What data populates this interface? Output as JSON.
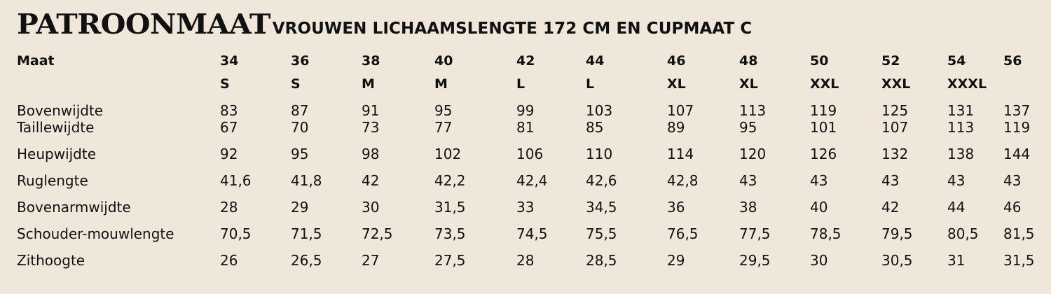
{
  "title": {
    "main": "PATROONMAAT",
    "subtitle": "VROUWEN LICHAAMSLENGTE 172 CM EN CUPMAAT C"
  },
  "table": {
    "header_label": "Maat",
    "sizes": [
      "34",
      "36",
      "38",
      "40",
      "42",
      "44",
      "46",
      "48",
      "50",
      "52",
      "54",
      "56"
    ],
    "letter_sizes": [
      "S",
      "S",
      "M",
      "M",
      "L",
      "L",
      "XL",
      "XL",
      "XXL",
      "XXL",
      "XXXL",
      ""
    ],
    "rows": [
      {
        "label": "Bovenwijdte",
        "values": [
          "83",
          "87",
          "91",
          "95",
          "99",
          "103",
          "107",
          "113",
          "119",
          "125",
          "131",
          "137"
        ]
      },
      {
        "label": "Taillewijdte",
        "values": [
          "67",
          "70",
          "73",
          "77",
          "81",
          "85",
          "89",
          "95",
          "101",
          "107",
          "113",
          "119"
        ]
      },
      {
        "label": "Heupwijdte",
        "values": [
          "92",
          "95",
          "98",
          "102",
          "106",
          "110",
          "114",
          "120",
          "126",
          "132",
          "138",
          "144"
        ]
      },
      {
        "label": "Ruglengte",
        "values": [
          "41,6",
          "41,8",
          "42",
          "42,2",
          "42,4",
          "42,6",
          "42,8",
          "43",
          "43",
          "43",
          "43",
          "43"
        ]
      },
      {
        "label": "Bovenarmwijdte",
        "values": [
          "28",
          "29",
          "30",
          "31,5",
          "33",
          "34,5",
          "36",
          "38",
          "40",
          "42",
          "44",
          "46"
        ]
      },
      {
        "label": "Schouder-mouwlengte",
        "values": [
          "70,5",
          "71,5",
          "72,5",
          "73,5",
          "74,5",
          "75,5",
          "76,5",
          "77,5",
          "78,5",
          "79,5",
          "80,5",
          "81,5"
        ]
      },
      {
        "label": "Zithoogte",
        "values": [
          "26",
          "26,5",
          "27",
          "27,5",
          "28",
          "28,5",
          "29",
          "29,5",
          "30",
          "30,5",
          "31",
          "31,5"
        ]
      }
    ]
  }
}
